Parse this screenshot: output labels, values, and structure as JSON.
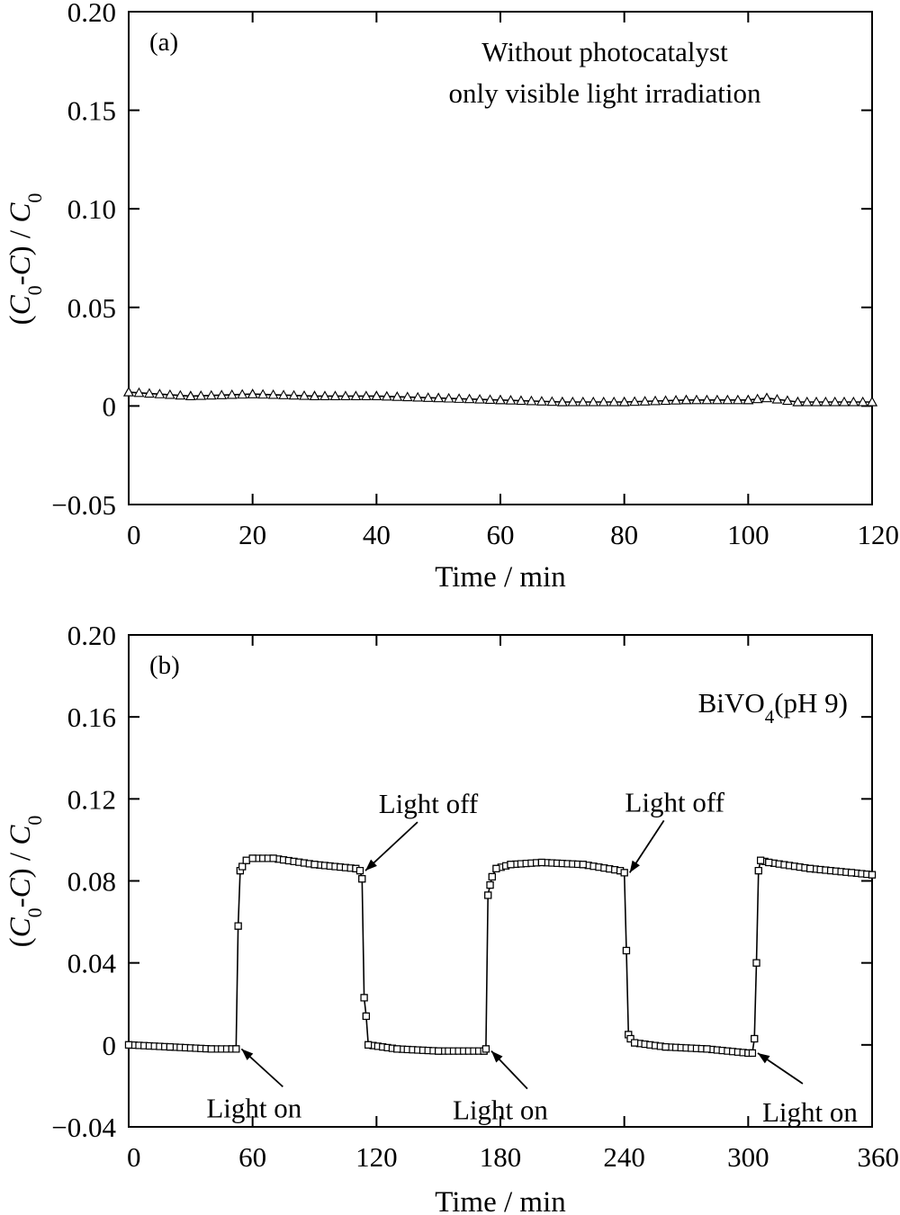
{
  "chart_data": [
    {
      "panel_label": "(a)",
      "type": "scatter",
      "xlabel": "Time / min",
      "ylabel": "(C0-C) / C0",
      "xlim": [
        0,
        120
      ],
      "ylim": [
        -0.05,
        0.2
      ],
      "xticks": [
        0,
        20,
        40,
        60,
        80,
        100,
        120
      ],
      "yticks": [
        -0.05,
        0,
        0.05,
        0.1,
        0.15,
        0.2
      ],
      "xtick_labels": [
        "0",
        "20",
        "40",
        "60",
        "80",
        "100",
        "120"
      ],
      "ytick_labels": [
        "−0.05",
        "0",
        "0.05",
        "0.10",
        "0.15",
        "0.20"
      ],
      "annotations": [
        "Without photocatalyst",
        "only visible light irradiation"
      ],
      "marker": "triangle",
      "series": [
        {
          "points": [
            [
              0,
              0.007
            ],
            [
              10,
              0.005
            ],
            [
              20,
              0.006
            ],
            [
              30,
              0.005
            ],
            [
              40,
              0.005
            ],
            [
              50,
              0.004
            ],
            [
              60,
              0.003
            ],
            [
              70,
              0.002
            ],
            [
              80,
              0.002
            ],
            [
              90,
              0.003
            ],
            [
              100,
              0.003
            ],
            [
              103,
              0.004
            ],
            [
              108,
              0.002
            ],
            [
              120,
              0.002
            ]
          ]
        }
      ]
    },
    {
      "panel_label": "(b)",
      "type": "scatter",
      "xlabel": "Time / min",
      "ylabel": "(C0-C) / C0",
      "xlim": [
        0,
        360
      ],
      "ylim": [
        -0.04,
        0.2
      ],
      "xticks": [
        0,
        60,
        120,
        180,
        240,
        300,
        360
      ],
      "yticks": [
        -0.04,
        0,
        0.04,
        0.08,
        0.12,
        0.16,
        0.2
      ],
      "xtick_labels": [
        "0",
        "60",
        "120",
        "180",
        "240",
        "300",
        "360"
      ],
      "ytick_labels": [
        "−0.04",
        "0",
        "0.04",
        "0.08",
        "0.12",
        "0.16",
        "0.20"
      ],
      "annotations": [
        "BiVO4(pH 9)"
      ],
      "callouts": [
        {
          "text": "Light off",
          "x": 112,
          "y": 0.085
        },
        {
          "text": "Light off",
          "x": 240,
          "y": 0.084
        },
        {
          "text": "Light on",
          "x": 52,
          "y": -0.002
        },
        {
          "text": "Light on",
          "x": 173,
          "y": -0.003
        },
        {
          "text": "Light on",
          "x": 302,
          "y": -0.004
        }
      ],
      "marker": "square",
      "series": [
        {
          "points": [
            [
              0,
              0.0
            ],
            [
              20,
              -0.001
            ],
            [
              40,
              -0.002
            ],
            [
              50,
              -0.002
            ],
            [
              52,
              -0.002
            ],
            [
              53,
              0.058
            ],
            [
              54,
              0.085
            ],
            [
              55,
              0.087
            ],
            [
              57,
              0.09
            ],
            [
              60,
              0.091
            ],
            [
              70,
              0.091
            ],
            [
              90,
              0.088
            ],
            [
              110,
              0.086
            ],
            [
              112,
              0.085
            ],
            [
              113,
              0.081
            ],
            [
              114,
              0.023
            ],
            [
              115,
              0.014
            ],
            [
              116,
              0.0
            ],
            [
              130,
              -0.002
            ],
            [
              150,
              -0.003
            ],
            [
              172,
              -0.003
            ],
            [
              173,
              -0.002
            ],
            [
              174,
              0.073
            ],
            [
              175,
              0.078
            ],
            [
              176,
              0.082
            ],
            [
              178,
              0.086
            ],
            [
              185,
              0.088
            ],
            [
              200,
              0.089
            ],
            [
              220,
              0.088
            ],
            [
              238,
              0.085
            ],
            [
              240,
              0.084
            ],
            [
              241,
              0.046
            ],
            [
              242,
              0.005
            ],
            [
              243,
              0.003
            ],
            [
              245,
              0.001
            ],
            [
              260,
              -0.001
            ],
            [
              280,
              -0.002
            ],
            [
              300,
              -0.004
            ],
            [
              302,
              -0.004
            ],
            [
              303,
              0.003
            ],
            [
              304,
              0.04
            ],
            [
              305,
              0.085
            ],
            [
              306,
              0.09
            ],
            [
              310,
              0.089
            ],
            [
              330,
              0.086
            ],
            [
              350,
              0.084
            ],
            [
              360,
              0.083
            ]
          ]
        }
      ]
    }
  ]
}
